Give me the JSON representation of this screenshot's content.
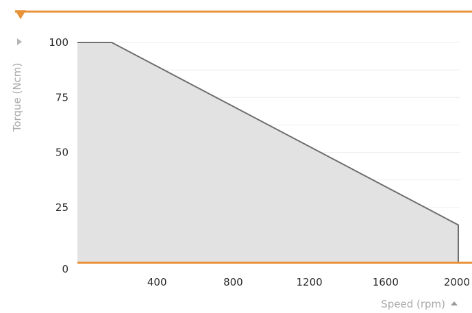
{
  "chart_data": {
    "type": "area",
    "xlabel": "Speed (rpm)",
    "ylabel": "Torque (Ncm)",
    "xlim": [
      0,
      2000
    ],
    "ylim": [
      0,
      100
    ],
    "x_ticks": [
      400,
      800,
      1200,
      1600,
      2000
    ],
    "y_ticks": [
      0,
      25,
      50,
      75,
      100
    ],
    "grid": true,
    "series": [
      {
        "x": [
          0,
          180,
          2000,
          2000
        ],
        "y": [
          100,
          100,
          17,
          0
        ]
      }
    ],
    "colors": {
      "fill": "#e2e2e2",
      "line": "#6e6e6e",
      "accent": "#e8923a",
      "grid": "#eeeeee",
      "axis_title": "#a9a9a9",
      "tick": "#2b2b2b"
    }
  }
}
